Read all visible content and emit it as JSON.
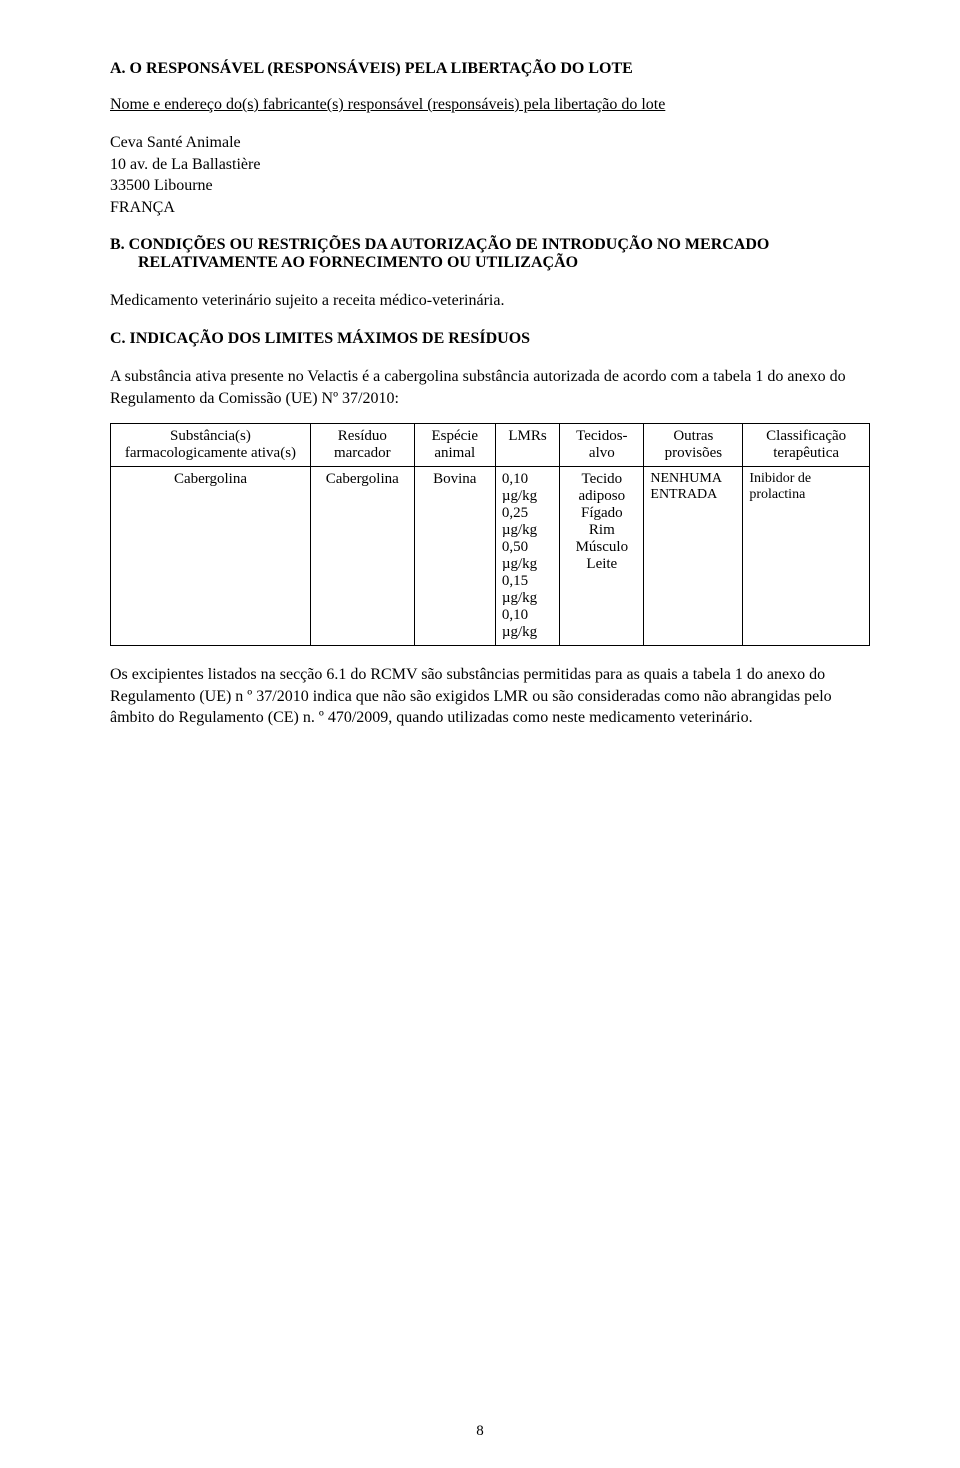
{
  "sectionA": {
    "heading": "A.   O RESPONSÁVEL (RESPONSÁVEIS) PELA LIBERTAÇÃO DO LOTE",
    "intro": "Nome e endereço do(s) fabricante(s) responsável (responsáveis) pela libertação do lote",
    "address": {
      "line1": "Ceva Santé Animale",
      "line2": "10 av. de La Ballastière",
      "line3": "33500 Libourne",
      "line4": "FRANÇA"
    }
  },
  "sectionB": {
    "heading": "B.   CONDIÇÕES OU RESTRIÇÕES DA AUTORIZAÇÃO DE INTRODUÇÃO NO MERCADO RELATIVAMENTE AO FORNECIMENTO OU UTILIZAÇÃO",
    "body": "Medicamento veterinário sujeito a receita médico-veterinária."
  },
  "sectionC": {
    "heading": "C.   INDICAÇÃO DOS LIMITES MÁXIMOS DE RESÍDUOS",
    "body": "A substância ativa presente no Velactis é a cabergolina substância autorizada de acordo com a tabela 1 do anexo do Regulamento da Comissão (UE) Nº 37/2010:"
  },
  "table": {
    "headers": {
      "c1": "Substância(s) farmacologicamente ativa(s)",
      "c2": "Resíduo marcador",
      "c3": "Espécie animal",
      "c4": "LMRs",
      "c5": "Tecidos-alvo",
      "c6": "Outras provisões",
      "c7": "Classificação terapêutica"
    },
    "row": {
      "c1": "Cabergolina",
      "c2": "Cabergolina",
      "c3": "Bovina",
      "c4_l1": "0,10 µg/kg",
      "c4_l2": "0,25 µg/kg",
      "c4_l3": "0,50 µg/kg",
      "c4_l4": "0,15 µg/kg",
      "c4_l5": "0,10 µg/kg",
      "c5_l1": "Tecido adiposo",
      "c5_l2": "Fígado",
      "c5_l3": "Rim",
      "c5_l4": "Músculo",
      "c5_l5": "Leite",
      "c6_l1": "NENHUMA",
      "c6_l2": "ENTRADA",
      "c7_l1": "Inibidor de",
      "c7_l2": "prolactina"
    }
  },
  "footerPara": "Os excipientes listados na secção 6.1 do RCMV são substâncias permitidas para as quais a tabela 1 do anexo do Regulamento (UE) n º 37/2010 indica que não são exigidos LMR ou são consideradas como não abrangidas pelo âmbito do Regulamento (CE) n. º 470/2009, quando utilizadas como neste medicamento veterinário.",
  "pageNumber": "8"
}
